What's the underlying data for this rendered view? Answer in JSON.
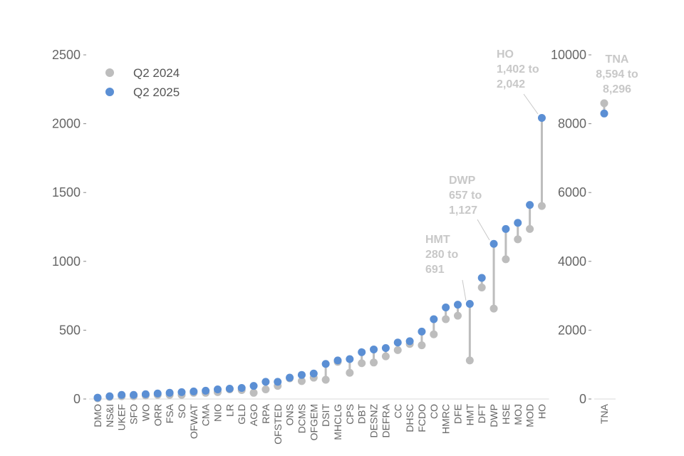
{
  "chart_data": {
    "type": "dumbbell",
    "colors": {
      "q2_2024": "#bdbdbd",
      "q2_2025": "#5b8fd4",
      "connector": "#bdbdbd",
      "annotation": "#c8c8c8",
      "axis": "#888888",
      "text": "#666666"
    },
    "legend": {
      "placement": "top-left",
      "entries": [
        "Q2 2024",
        "Q2 2025"
      ]
    },
    "main_panel": {
      "ylim": [
        0,
        2500
      ],
      "yticks": [
        0,
        500,
        1000,
        1500,
        2000,
        2500
      ],
      "ytick_labels": [
        "0",
        "500",
        "1000",
        "1500",
        "2000",
        "2500"
      ],
      "categories": [
        "DMO",
        "NS&I",
        "UKEF",
        "SFO",
        "WO",
        "ORR",
        "FSA",
        "SO",
        "OFWAT",
        "CMA",
        "NIO",
        "LR",
        "GLD",
        "AGO",
        "RPA",
        "OFSTED",
        "ONS",
        "DCMS",
        "OFGEM",
        "DSIT",
        "MHCLG",
        "CPS",
        "DBT",
        "DESNZ",
        "DEFRA",
        "CC",
        "DHSC",
        "FCDO",
        "CO",
        "HMRC",
        "DFE",
        "HMT",
        "DFT",
        "DWP",
        "HSE",
        "MOJ",
        "MOD",
        "HO"
      ],
      "series": [
        {
          "name": "Q2 2024",
          "values": [
            5,
            15,
            20,
            20,
            25,
            30,
            30,
            30,
            45,
            45,
            50,
            70,
            65,
            45,
            70,
            95,
            150,
            130,
            155,
            140,
            270,
            190,
            260,
            265,
            310,
            355,
            400,
            390,
            470,
            580,
            605,
            280,
            810,
            657,
            1015,
            1160,
            1235,
            1402
          ]
        },
        {
          "name": "Q2 2025",
          "values": [
            10,
            20,
            30,
            30,
            35,
            40,
            45,
            50,
            55,
            60,
            70,
            75,
            80,
            95,
            125,
            125,
            155,
            175,
            185,
            255,
            280,
            290,
            340,
            360,
            370,
            410,
            420,
            490,
            580,
            665,
            685,
            691,
            880,
            1127,
            1235,
            1280,
            1410,
            2042
          ]
        }
      ]
    },
    "right_panel": {
      "ylim": [
        0,
        10000
      ],
      "yticks": [
        0,
        2000,
        4000,
        6000,
        8000,
        10000
      ],
      "ytick_labels": [
        "0",
        "2000",
        "4000",
        "6000",
        "8000",
        "10000"
      ],
      "categories": [
        "TNA"
      ],
      "series": [
        {
          "name": "Q2 2024",
          "values": [
            8594
          ]
        },
        {
          "name": "Q2 2025",
          "values": [
            8296
          ]
        }
      ]
    },
    "annotations": [
      {
        "target": "HMT",
        "lines": [
          "HMT",
          "280 to",
          "691"
        ]
      },
      {
        "target": "DWP",
        "lines": [
          "DWP",
          "657 to",
          "1,127"
        ]
      },
      {
        "target": "HO",
        "lines": [
          "HO",
          "1,402 to",
          "2,042"
        ]
      },
      {
        "target": "TNA",
        "lines": [
          "TNA",
          "8,594 to",
          "8,296"
        ]
      }
    ]
  }
}
